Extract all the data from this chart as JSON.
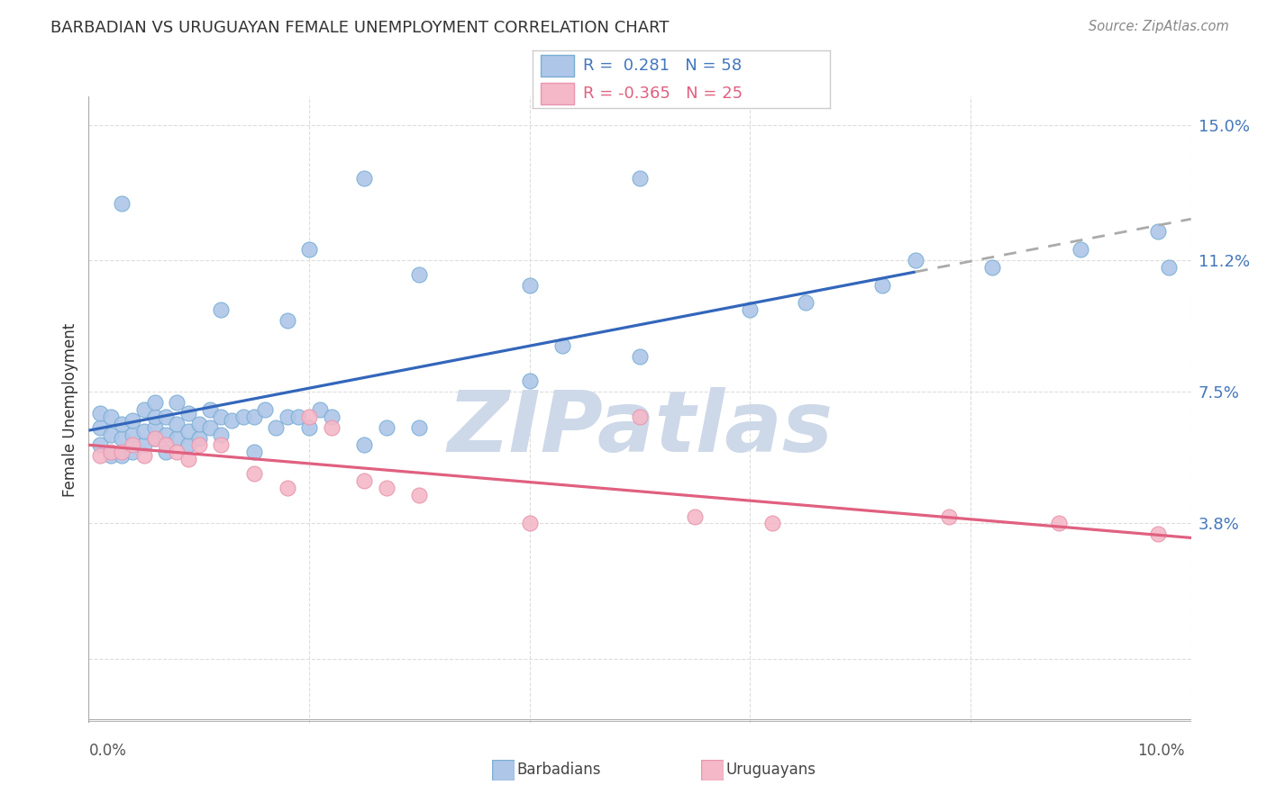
{
  "title": "BARBADIAN VS URUGUAYAN FEMALE UNEMPLOYMENT CORRELATION CHART",
  "source": "Source: ZipAtlas.com",
  "ylabel": "Female Unemployment",
  "y_ticks": [
    0.0,
    0.038,
    0.075,
    0.112,
    0.15
  ],
  "y_tick_labels": [
    "",
    "3.8%",
    "7.5%",
    "11.2%",
    "15.0%"
  ],
  "x_range": [
    0.0,
    0.1
  ],
  "y_range": [
    -0.018,
    0.158
  ],
  "barbadian_color": "#aec6e8",
  "barbadian_edge": "#7aaed4",
  "uruguayan_color": "#f4b8c8",
  "uruguayan_edge": "#e896ae",
  "blue_line_color": "#3366bb",
  "pink_line_color": "#e06080",
  "dashed_line_color": "#aaaaaa",
  "watermark_color": "#cdd8e8",
  "background_color": "#ffffff",
  "grid_color": "#dddddd",
  "right_tick_color": "#4477bb",
  "legend_box_color": "#cccccc",
  "barbadians_x": [
    0.001,
    0.001,
    0.001,
    0.002,
    0.002,
    0.002,
    0.003,
    0.003,
    0.003,
    0.004,
    0.004,
    0.004,
    0.005,
    0.005,
    0.005,
    0.006,
    0.006,
    0.006,
    0.006,
    0.007,
    0.007,
    0.007,
    0.008,
    0.008,
    0.008,
    0.009,
    0.009,
    0.009,
    0.01,
    0.01,
    0.011,
    0.011,
    0.012,
    0.012,
    0.013,
    0.014,
    0.015,
    0.015,
    0.016,
    0.017,
    0.018,
    0.019,
    0.02,
    0.021,
    0.022,
    0.025,
    0.027,
    0.03,
    0.04,
    0.043,
    0.05,
    0.06,
    0.065,
    0.072,
    0.082,
    0.09,
    0.097,
    0.098
  ],
  "barbadians_y": [
    0.06,
    0.065,
    0.069,
    0.057,
    0.063,
    0.068,
    0.062,
    0.066,
    0.057,
    0.058,
    0.063,
    0.067,
    0.06,
    0.064,
    0.07,
    0.062,
    0.065,
    0.068,
    0.072,
    0.058,
    0.063,
    0.068,
    0.062,
    0.066,
    0.072,
    0.06,
    0.064,
    0.069,
    0.062,
    0.066,
    0.065,
    0.07,
    0.063,
    0.068,
    0.067,
    0.068,
    0.058,
    0.068,
    0.07,
    0.065,
    0.068,
    0.068,
    0.065,
    0.07,
    0.068,
    0.06,
    0.065,
    0.065,
    0.078,
    0.088,
    0.085,
    0.098,
    0.1,
    0.105,
    0.11,
    0.115,
    0.12,
    0.11
  ],
  "barbadians_high_x": [
    0.003,
    0.012,
    0.018,
    0.02,
    0.025,
    0.03,
    0.04,
    0.05,
    0.075
  ],
  "barbadians_high_y": [
    0.128,
    0.098,
    0.095,
    0.115,
    0.135,
    0.108,
    0.105,
    0.135,
    0.112
  ],
  "uruguayans_x": [
    0.001,
    0.002,
    0.003,
    0.004,
    0.005,
    0.006,
    0.007,
    0.008,
    0.009,
    0.01,
    0.012,
    0.015,
    0.018,
    0.02,
    0.022,
    0.025,
    0.027,
    0.03,
    0.04,
    0.05,
    0.055,
    0.062,
    0.078,
    0.088,
    0.097
  ],
  "uruguayans_y": [
    0.057,
    0.058,
    0.058,
    0.06,
    0.057,
    0.062,
    0.06,
    0.058,
    0.056,
    0.06,
    0.06,
    0.052,
    0.048,
    0.068,
    0.065,
    0.05,
    0.048,
    0.046,
    0.038,
    0.068,
    0.04,
    0.038,
    0.04,
    0.038,
    0.035
  ],
  "barbadian_R": "0.281",
  "barbadian_N": "58",
  "uruguayan_R": "-0.365",
  "uruguayan_N": "25"
}
